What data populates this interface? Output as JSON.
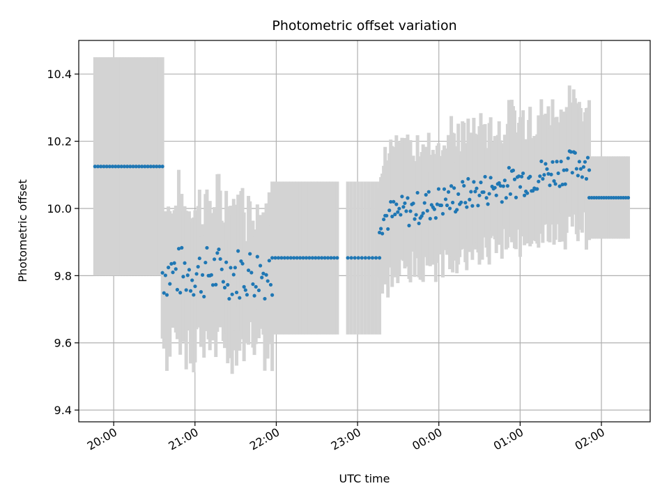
{
  "chart_data": {
    "type": "scatter",
    "title": "Photometric offset variation",
    "xlabel": "UTC time",
    "ylabel": "Photometric offset",
    "x_unit": "hours (UTC, continuing past midnight)",
    "xlim": [
      19.57,
      26.6
    ],
    "ylim": [
      9.365,
      10.5
    ],
    "grid": true,
    "point_color": "#1f77b4",
    "errorbar_color": "#d3d3d3",
    "x_ticks": [
      {
        "value": 20,
        "label": "20:00"
      },
      {
        "value": 21,
        "label": "21:00"
      },
      {
        "value": 22,
        "label": "22:00"
      },
      {
        "value": 23,
        "label": "23:00"
      },
      {
        "value": 24,
        "label": "00:00"
      },
      {
        "value": 25,
        "label": "01:00"
      },
      {
        "value": 26,
        "label": "02:00"
      }
    ],
    "y_ticks": [
      {
        "value": 9.4,
        "label": "9.4"
      },
      {
        "value": 9.6,
        "label": "9.6"
      },
      {
        "value": 9.8,
        "label": "9.8"
      },
      {
        "value": 10.0,
        "label": "10.0"
      },
      {
        "value": 10.2,
        "label": "10.2"
      },
      {
        "value": 10.4,
        "label": "10.4"
      }
    ],
    "segments": [
      {
        "x_start": 19.77,
        "x_end": 20.6,
        "n": 24,
        "y": 10.125,
        "err_low": 9.8,
        "err_high": 10.45,
        "noise": 0
      },
      {
        "x_start": 20.6,
        "x_end": 21.95,
        "n": 75,
        "y": 9.81,
        "err_low": null,
        "err_high": null,
        "noise": 0.08,
        "err": 0.19
      },
      {
        "x_start": 21.95,
        "x_end": 22.75,
        "n": 22,
        "y": 9.853,
        "err_low": 9.625,
        "err_high": 10.08,
        "noise": 0
      },
      {
        "x_start": 22.88,
        "x_end": 23.27,
        "n": 10,
        "y": 9.853,
        "err_low": 9.625,
        "err_high": 10.08,
        "noise": 0
      },
      {
        "x_start": 23.27,
        "x_end": 25.85,
        "n": 150,
        "y_start": 9.97,
        "y_end": 10.14,
        "noise": 0.05,
        "err": 0.17
      },
      {
        "x_start": 25.85,
        "x_end": 26.33,
        "n": 17,
        "y": 10.032,
        "err_low": 9.91,
        "err_high": 10.155,
        "noise": 0
      }
    ]
  }
}
